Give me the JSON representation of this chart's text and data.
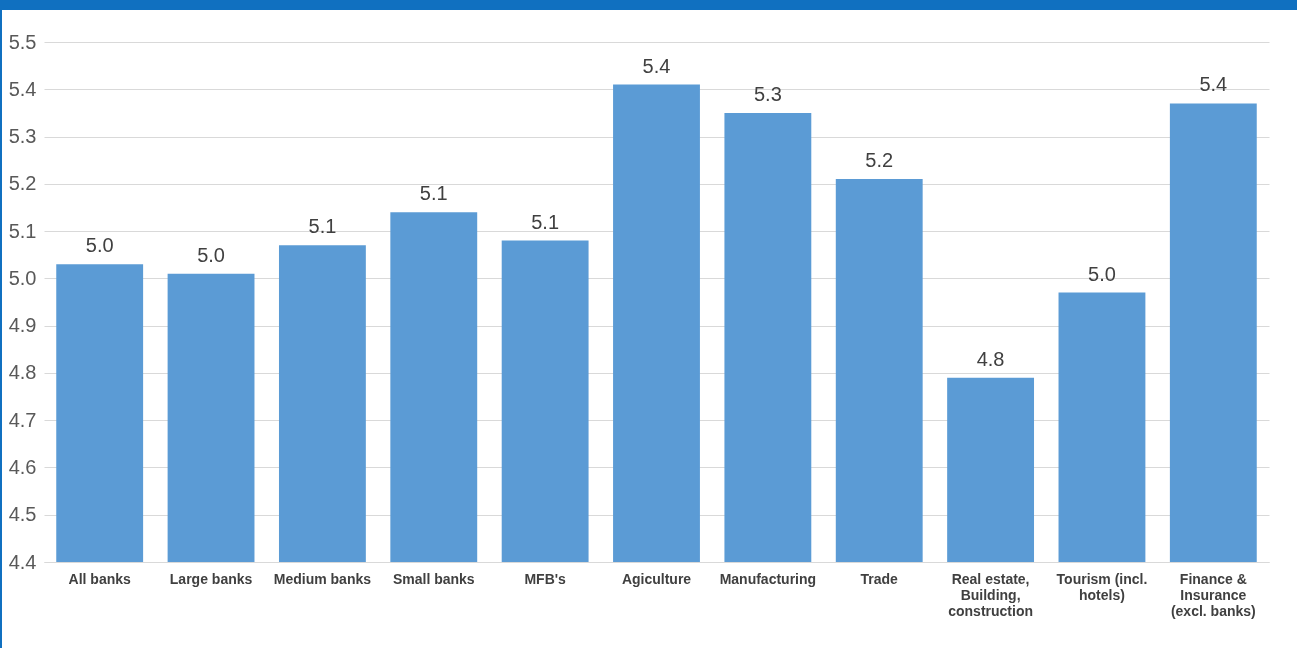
{
  "chart_data": {
    "type": "bar",
    "categories": [
      "All banks",
      "Large banks",
      "Medium banks",
      "Small banks",
      "MFB's",
      "Agiculture",
      "Manufacturing",
      "Trade",
      "Real estate, Building, construction",
      "Tourism (incl. hotels)",
      "Finance & Insurance (excl. banks)"
    ],
    "values": [
      5.03,
      5.01,
      5.07,
      5.14,
      5.08,
      5.41,
      5.35,
      5.21,
      4.79,
      4.97,
      5.37
    ],
    "value_labels": [
      "5.0",
      "5.0",
      "5.1",
      "5.1",
      "5.1",
      "5.4",
      "5.3",
      "5.2",
      "4.8",
      "5.0",
      "5.4"
    ],
    "color": "#5b9bd5",
    "ylim": [
      4.4,
      5.5
    ],
    "yticks": [
      4.4,
      4.5,
      4.6,
      4.7,
      4.8,
      4.9,
      {
        "value": 5,
        "label": "5.0"
      },
      5.1,
      5.2,
      5.3,
      5.4,
      5.5
    ],
    "grid": true
  }
}
